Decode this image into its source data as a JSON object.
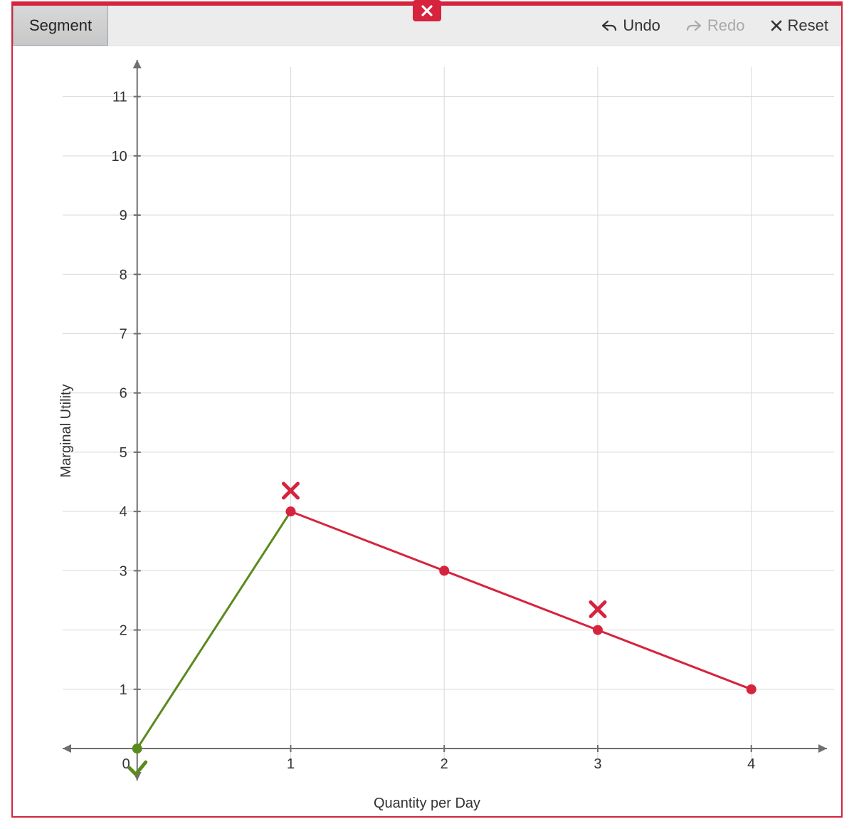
{
  "toolbar": {
    "segment_label": "Segment",
    "undo_label": "Undo",
    "redo_label": "Redo",
    "reset_label": "Reset",
    "redo_enabled": false
  },
  "colors": {
    "accent": "#d6233e",
    "toolbar_bg": "#ececec",
    "grid": "#d9d9d9",
    "axis": "#6f6f6f",
    "green": "#5b8a1d",
    "red": "#d6233e",
    "panel_bg": "#ffffff"
  },
  "chart": {
    "type": "line",
    "xlabel": "Quantity per Day",
    "ylabel": "Marginal Utility",
    "xlim": [
      -0.3,
      4.4
    ],
    "ylim": [
      -0.3,
      11.5
    ],
    "xticks": [
      0,
      1,
      2,
      3,
      4
    ],
    "yticks": [
      1,
      2,
      3,
      4,
      5,
      6,
      7,
      8,
      9,
      10,
      11
    ],
    "origin_tick_label": "0",
    "grid_x": [
      1,
      2,
      3,
      4
    ],
    "grid_y": [
      1,
      2,
      3,
      4,
      5,
      6,
      7,
      8,
      9,
      10,
      11
    ],
    "segments": [
      {
        "from": [
          0,
          0
        ],
        "to": [
          1,
          4
        ],
        "color": "#5b8a1d",
        "width": 3
      },
      {
        "from": [
          1,
          4
        ],
        "to": [
          2,
          3
        ],
        "color": "#d6233e",
        "width": 3
      },
      {
        "from": [
          2,
          3
        ],
        "to": [
          3,
          2
        ],
        "color": "#d6233e",
        "width": 3
      },
      {
        "from": [
          3,
          2
        ],
        "to": [
          4,
          1
        ],
        "color": "#d6233e",
        "width": 3
      }
    ],
    "points": [
      {
        "x": 0,
        "y": 0,
        "color": "#5b8a1d",
        "r": 7
      },
      {
        "x": 1,
        "y": 4,
        "color": "#d6233e",
        "r": 7
      },
      {
        "x": 2,
        "y": 3,
        "color": "#d6233e",
        "r": 7
      },
      {
        "x": 3,
        "y": 2,
        "color": "#d6233e",
        "r": 7
      },
      {
        "x": 4,
        "y": 1,
        "color": "#d6233e",
        "r": 7
      }
    ],
    "markers": [
      {
        "type": "check",
        "x": 0,
        "y": 0,
        "dy": -0.35,
        "color": "#5b8a1d"
      },
      {
        "type": "x",
        "x": 1,
        "y": 4,
        "dy": 0.35,
        "color": "#d6233e"
      },
      {
        "type": "x",
        "x": 3,
        "y": 2,
        "dy": 0.35,
        "color": "#d6233e"
      }
    ],
    "label_fontsize": 20,
    "tick_fontsize": 20
  }
}
